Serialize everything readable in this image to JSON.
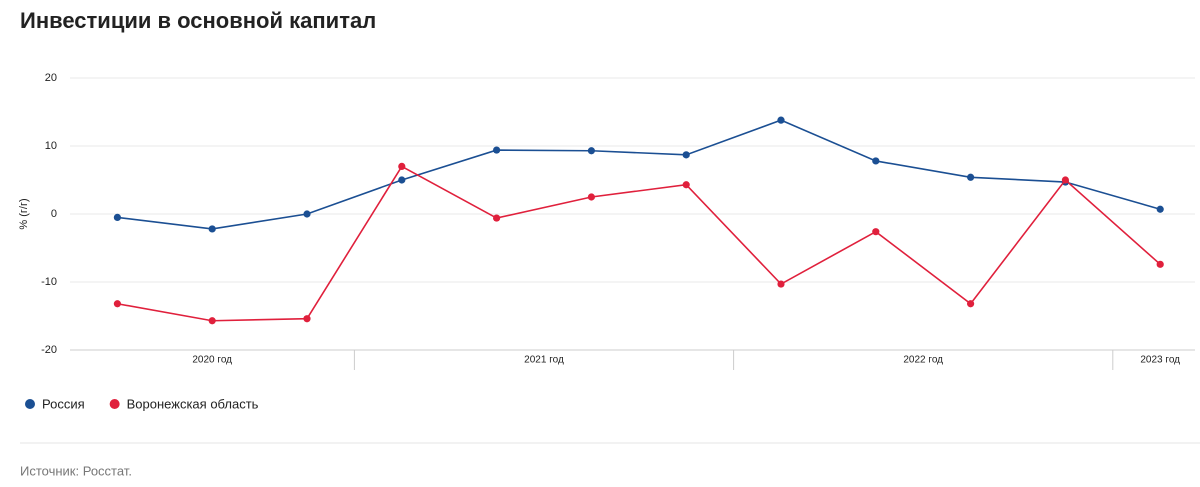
{
  "chart_data": {
    "type": "line",
    "title": "Инвестиции в основной капитал",
    "y_label": "% (г/г)",
    "categories": [
      "2020 год",
      null,
      null,
      "2021 год",
      null,
      null,
      null,
      "2022 год",
      null,
      null,
      null,
      "2023 год"
    ],
    "series": [
      {
        "name": "Россия",
        "color": "#1b4f93",
        "values": [
          -0.5,
          -2.2,
          0,
          5.0,
          9.4,
          9.3,
          8.7,
          13.8,
          7.8,
          5.4,
          4.7,
          0.7
        ]
      },
      {
        "name": "Воронежская область",
        "color": "#e0203c",
        "values": [
          -13.2,
          -15.7,
          -15.4,
          7.0,
          -0.6,
          2.5,
          4.3,
          -10.3,
          -2.6,
          -13.2,
          5.0,
          -7.4
        ]
      }
    ],
    "ylim": [
      -20,
      20
    ],
    "yticks": [
      -20,
      -10,
      0,
      10,
      20
    ],
    "grid": true,
    "source": "Источник: Росстат."
  }
}
